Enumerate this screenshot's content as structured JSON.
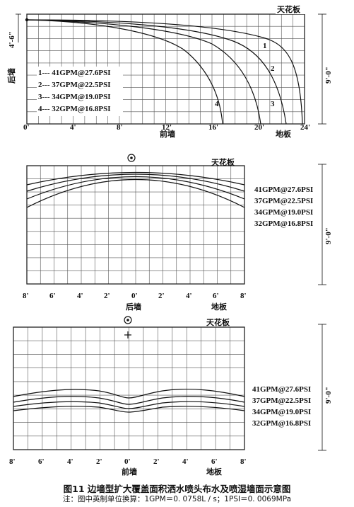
{
  "panel1": {
    "ceiling": "天花板",
    "height_label": "4'-6\"",
    "dimension": "9'-0\"",
    "back_wall": "后墙",
    "front_wall": "前墙",
    "floor": "地板",
    "x_ticks": [
      "0'",
      "4'",
      "8'",
      "12'",
      "16'",
      "20'",
      "24'"
    ],
    "legend": [
      "1--- 41GPM@27.6PSI",
      "2--- 37GPM@22.5PSI",
      "3--- 34GPM@19.0PSI",
      "4--- 32GPM@16.8PSI"
    ],
    "curve_labels": [
      "1",
      "2",
      "3",
      "4"
    ]
  },
  "panel2": {
    "ceiling": "天花板",
    "dimension": "9'-0\"",
    "back_wall": "后墙",
    "floor": "地板",
    "x_ticks": [
      "8'",
      "6'",
      "4'",
      "2'",
      "0'",
      "2'",
      "4'",
      "6'",
      "8'"
    ],
    "legend": [
      "41GPM@27.6PSI",
      "37GPM@22.5PSI",
      "34GPM@19.0PSI",
      "32GPM@16.8PSI"
    ]
  },
  "panel3": {
    "ceiling": "天花板",
    "dimension": "9'-0\"",
    "front_wall": "前墙",
    "floor": "地板",
    "x_ticks": [
      "8'",
      "6'",
      "4'",
      "2'",
      "0'",
      "2'",
      "4'",
      "6'",
      "8'"
    ],
    "legend": [
      "41GPM@27.6PSI",
      "37GPM@22.5PSI",
      "34GPM@19.0PSI",
      "32GPM@16.8PSI"
    ]
  },
  "caption": {
    "title": "图11 边墙型扩大覆盖面积洒水喷头布水及喷湿墙面示意图",
    "note": "注：图中英制单位换算：1GPM＝0. 0758L / s；1PSI＝0. 0069MPa"
  }
}
